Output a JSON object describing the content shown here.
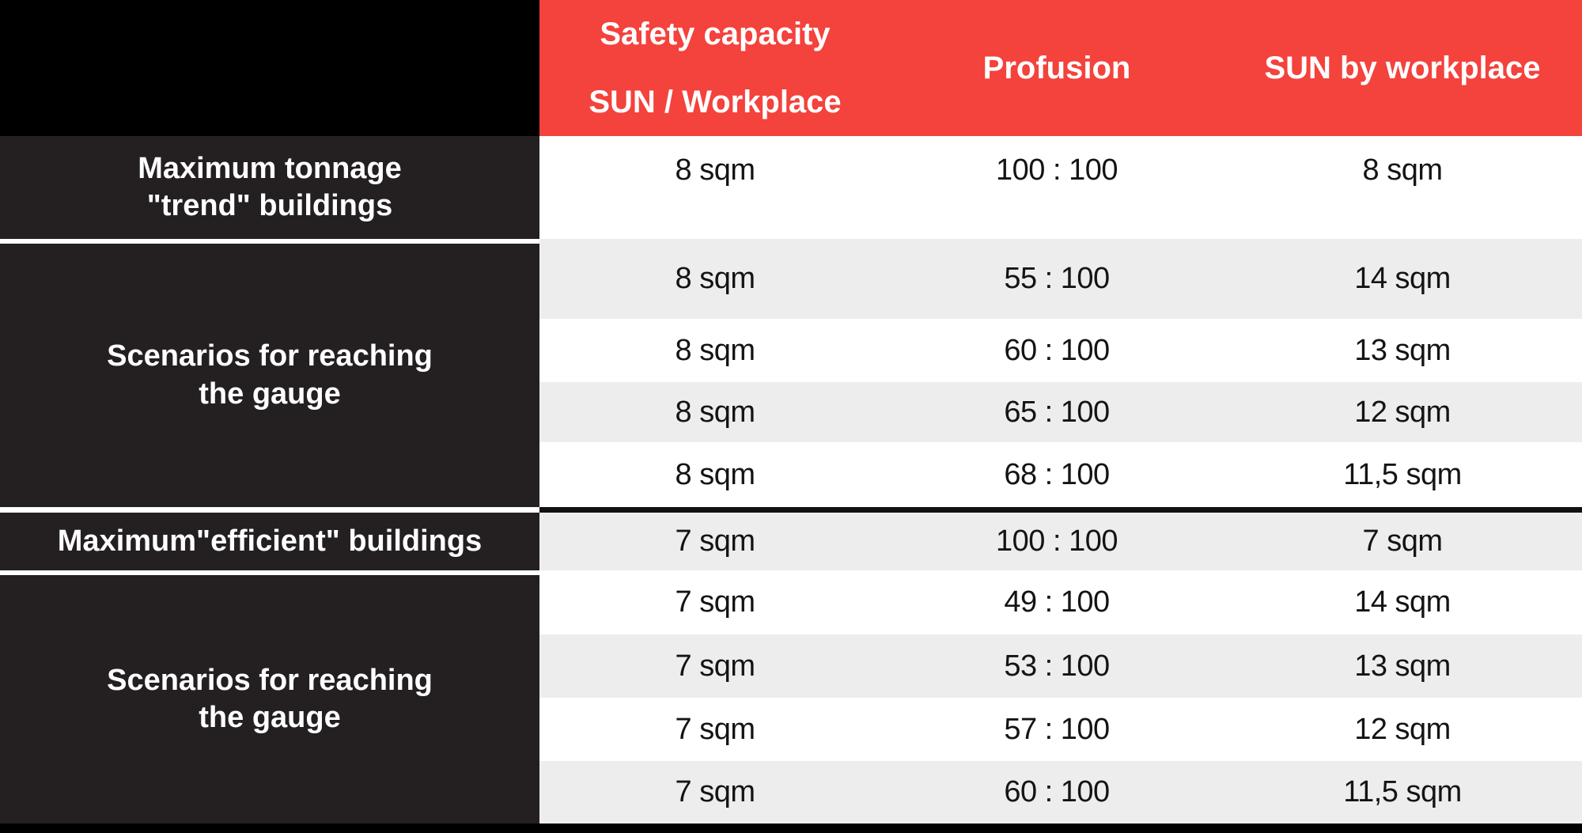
{
  "chart_data": {
    "type": "table",
    "columns": [
      "",
      "Safety capacity SUN / Workplace",
      "Profusion",
      "SUN by workplace"
    ],
    "rows": [
      [
        "Maximum tonnage \"trend\" buildings",
        "8 sqm",
        "100 : 100",
        "8 sqm"
      ],
      [
        "Scenarios for reaching the gauge",
        "8 sqm",
        "55 : 100",
        "14 sqm"
      ],
      [
        "Scenarios for reaching the gauge",
        "8 sqm",
        "60 : 100",
        "13 sqm"
      ],
      [
        "Scenarios for reaching the gauge",
        "8 sqm",
        "65 : 100",
        "12 sqm"
      ],
      [
        "Scenarios for reaching the gauge",
        "8 sqm",
        "68 : 100",
        "11,5 sqm"
      ],
      [
        "Maximum\"efficient\" buildings",
        "7 sqm",
        "100 : 100",
        "7 sqm"
      ],
      [
        "Scenarios for reaching the gauge",
        "7 sqm",
        "49 : 100",
        "14 sqm"
      ],
      [
        "Scenarios for reaching the gauge",
        "7 sqm",
        "53 : 100",
        "13 sqm"
      ],
      [
        "Scenarios for reaching the gauge",
        "7 sqm",
        "57 : 100",
        "12 sqm"
      ],
      [
        "Scenarios for reaching the gauge",
        "7 sqm",
        "60 : 100",
        "11,5 sqm"
      ]
    ]
  },
  "header": {
    "safety_line1": "Safety capacity",
    "safety_line2": "SUN / Workplace",
    "profusion": "Profusion",
    "sun_by_workplace": "SUN by workplace"
  },
  "groups": {
    "trend": {
      "line1": "Maximum tonnage",
      "line2": "\"trend\" buildings"
    },
    "scenarios1": {
      "line1": "Scenarios for reaching",
      "line2": "the gauge"
    },
    "efficient": {
      "line1": "Maximum\"efficient\" buildings"
    },
    "scenarios2": {
      "line1": "Scenarios for reaching",
      "line2": "the gauge"
    }
  },
  "rows": [
    {
      "safety": "8 sqm",
      "profusion": "100 : 100",
      "sun": "8 sqm"
    },
    {
      "safety": "8 sqm",
      "profusion": "55 : 100",
      "sun": "14 sqm"
    },
    {
      "safety": "8 sqm",
      "profusion": "60 : 100",
      "sun": "13 sqm"
    },
    {
      "safety": "8 sqm",
      "profusion": "65 : 100",
      "sun": "12 sqm"
    },
    {
      "safety": "8 sqm",
      "profusion": "68 : 100",
      "sun": "11,5 sqm"
    },
    {
      "safety": "7 sqm",
      "profusion": "100 : 100",
      "sun": "7 sqm"
    },
    {
      "safety": "7 sqm",
      "profusion": "49 : 100",
      "sun": "14 sqm"
    },
    {
      "safety": "7 sqm",
      "profusion": "53 : 100",
      "sun": "13 sqm"
    },
    {
      "safety": "7 sqm",
      "profusion": "57 : 100",
      "sun": "12 sqm"
    },
    {
      "safety": "7 sqm",
      "profusion": "60 : 100",
      "sun": "11,5 sqm"
    }
  ],
  "colors": {
    "header_red": "#F4423C",
    "corner_black": "#000000",
    "left_cell_bg": "#242021",
    "row_alt_gray": "#EDEDED",
    "section_divider": "#121010",
    "bottom_bar": "#000000"
  }
}
